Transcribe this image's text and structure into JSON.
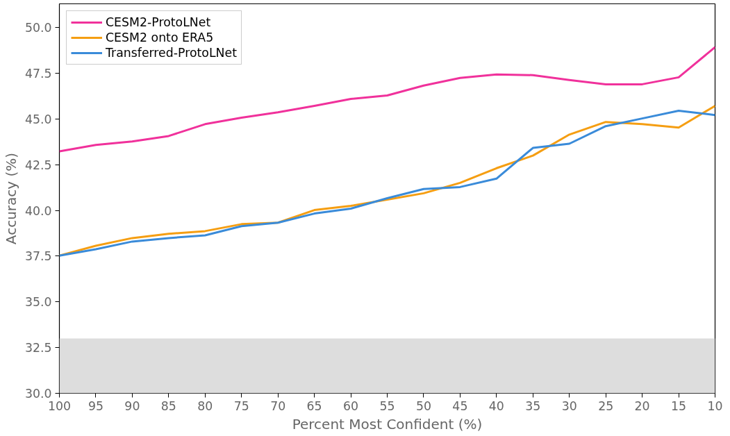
{
  "chart_data": {
    "type": "line",
    "xlabel": "Percent Most Confident (%)",
    "ylabel": "Accuracy (%)",
    "x": [
      100,
      95,
      90,
      85,
      80,
      75,
      70,
      65,
      60,
      55,
      50,
      45,
      40,
      35,
      30,
      25,
      20,
      15,
      10
    ],
    "series": [
      {
        "name": "CESM2-ProtoLNet",
        "color": "#f0319b",
        "values": [
          43.23,
          43.58,
          43.77,
          44.07,
          44.72,
          45.07,
          45.37,
          45.72,
          46.1,
          46.29,
          46.83,
          47.25,
          47.44,
          47.4,
          47.13,
          46.9,
          46.9,
          47.28,
          48.93
        ]
      },
      {
        "name": "CESM2 onto ERA5",
        "color": "#f59e12",
        "values": [
          37.53,
          38.07,
          38.49,
          38.72,
          38.87,
          39.25,
          39.33,
          40.02,
          40.25,
          40.59,
          40.94,
          41.51,
          42.31,
          43.0,
          44.15,
          44.84,
          44.72,
          44.53,
          45.72
        ]
      },
      {
        "name": "Transferred-ProtoLNet",
        "color": "#3a8bd9",
        "values": [
          37.53,
          37.88,
          38.3,
          38.49,
          38.64,
          39.14,
          39.33,
          39.83,
          40.1,
          40.67,
          41.17,
          41.28,
          41.74,
          43.42,
          43.65,
          44.61,
          45.03,
          45.45,
          45.22
        ]
      }
    ],
    "xlim": [
      100,
      10
    ],
    "xticks": [
      100,
      95,
      90,
      85,
      80,
      75,
      70,
      65,
      60,
      55,
      50,
      45,
      40,
      35,
      30,
      25,
      20,
      15,
      10
    ],
    "ylim": [
      30,
      51.3
    ],
    "yticks": [
      {
        "value": 30,
        "label": "30.0"
      },
      {
        "value": 32.5,
        "label": "32.5"
      },
      {
        "value": 35,
        "label": "35.0"
      },
      {
        "value": 37.5,
        "label": "37.5"
      },
      {
        "value": 40,
        "label": "40.0"
      },
      {
        "value": 42.5,
        "label": "42.5"
      },
      {
        "value": 45,
        "label": "45.0"
      },
      {
        "value": 47.5,
        "label": "47.5"
      },
      {
        "value": 50,
        "label": "50.0"
      }
    ],
    "bands": [
      {
        "axis": "y",
        "from": 30,
        "to": 33,
        "color": "#dddddd"
      }
    ],
    "grid": false,
    "legend": "top left",
    "marker": "none",
    "line_style": "solid"
  }
}
